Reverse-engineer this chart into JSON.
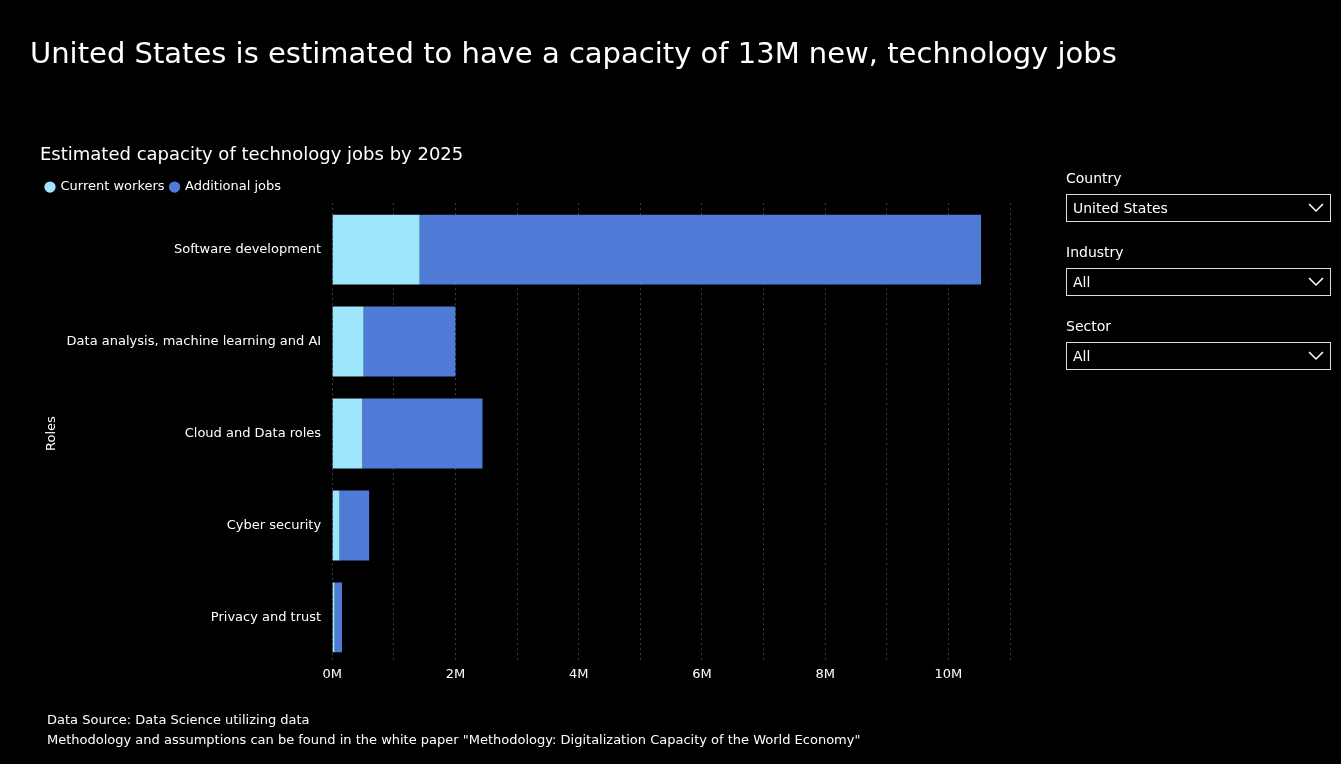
{
  "chart_data": {
    "type": "bar",
    "orientation": "horizontal",
    "stacked": true,
    "title": "United States is estimated to have a capacity of 13M new, technology jobs",
    "subtitle": "Estimated capacity of technology jobs by 2025",
    "ylabel": "Roles",
    "categories": [
      "Software development",
      "Data analysis, machine learning and AI",
      "Cloud and Data roles",
      "Cyber security",
      "Privacy and trust"
    ],
    "series": [
      {
        "name": "Current workers",
        "color": "#9ee6fb",
        "values": [
          1.42,
          0.51,
          0.49,
          0.12,
          0.04
        ]
      },
      {
        "name": "Additional jobs",
        "color": "#4f7bd6",
        "values": [
          9.11,
          1.49,
          1.95,
          0.48,
          0.12
        ]
      }
    ],
    "xlim": [
      0,
      11
    ],
    "xticks": [
      {
        "value": 0,
        "label": "0M"
      },
      {
        "value": 1,
        "label": null
      },
      {
        "value": 2,
        "label": "2M"
      },
      {
        "value": 3,
        "label": null
      },
      {
        "value": 4,
        "label": "4M"
      },
      {
        "value": 5,
        "label": null
      },
      {
        "value": 6,
        "label": "6M"
      },
      {
        "value": 7,
        "label": null
      },
      {
        "value": 8,
        "label": "8M"
      },
      {
        "value": 9,
        "label": null
      },
      {
        "value": 10,
        "label": "10M"
      },
      {
        "value": 11,
        "label": null
      }
    ],
    "grid": "x",
    "legend": "top left",
    "annotations": [
      "Data Source: Data Science utilizing data",
      "Methodology and assumptions can be found in the white paper \"Methodology: Digitalization Capacity of the World Economy\"",
      "Country",
      "United States",
      "Industry",
      "All",
      "Sector",
      "All"
    ]
  }
}
